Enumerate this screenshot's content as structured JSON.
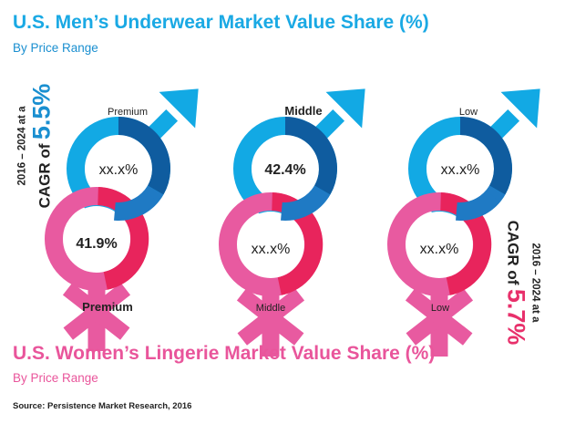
{
  "men": {
    "title": "U.S. Men’s Underwear Market Value Share (%)",
    "subtitle": "By Price Range"
  },
  "women": {
    "title": "U.S. Women’s Lingerie Market Value Share (%)",
    "subtitle": "By Price Range"
  },
  "source": "Source: Persistence Market Research, 2016",
  "cagr_left": {
    "years": "2016 – 2024 at a",
    "label": "CAGR of",
    "value": "5.5%"
  },
  "cagr_right": {
    "years": "2016 – 2024 at a",
    "label": "CAGR of",
    "value": "5.7%"
  },
  "colors": {
    "men_ring": "#12a9e4",
    "men_accent": "#0f5c9f",
    "men_mid": "#1f7ac4",
    "women_ring": "#e85aa0",
    "women_accent": "#e8245c"
  },
  "chart_data": {
    "type": "pie",
    "categories": [
      "Premium",
      "Middle",
      "Low"
    ],
    "men": {
      "labels": [
        "Premium",
        "Middle",
        "Low"
      ],
      "center_values": [
        "xx.x%",
        "42.4%",
        "xx.x%"
      ]
    },
    "women": {
      "labels": [
        "Premium",
        "Middle",
        "Low"
      ],
      "center_values": [
        "41.9%",
        "xx.x%",
        "xx.x%"
      ]
    }
  }
}
